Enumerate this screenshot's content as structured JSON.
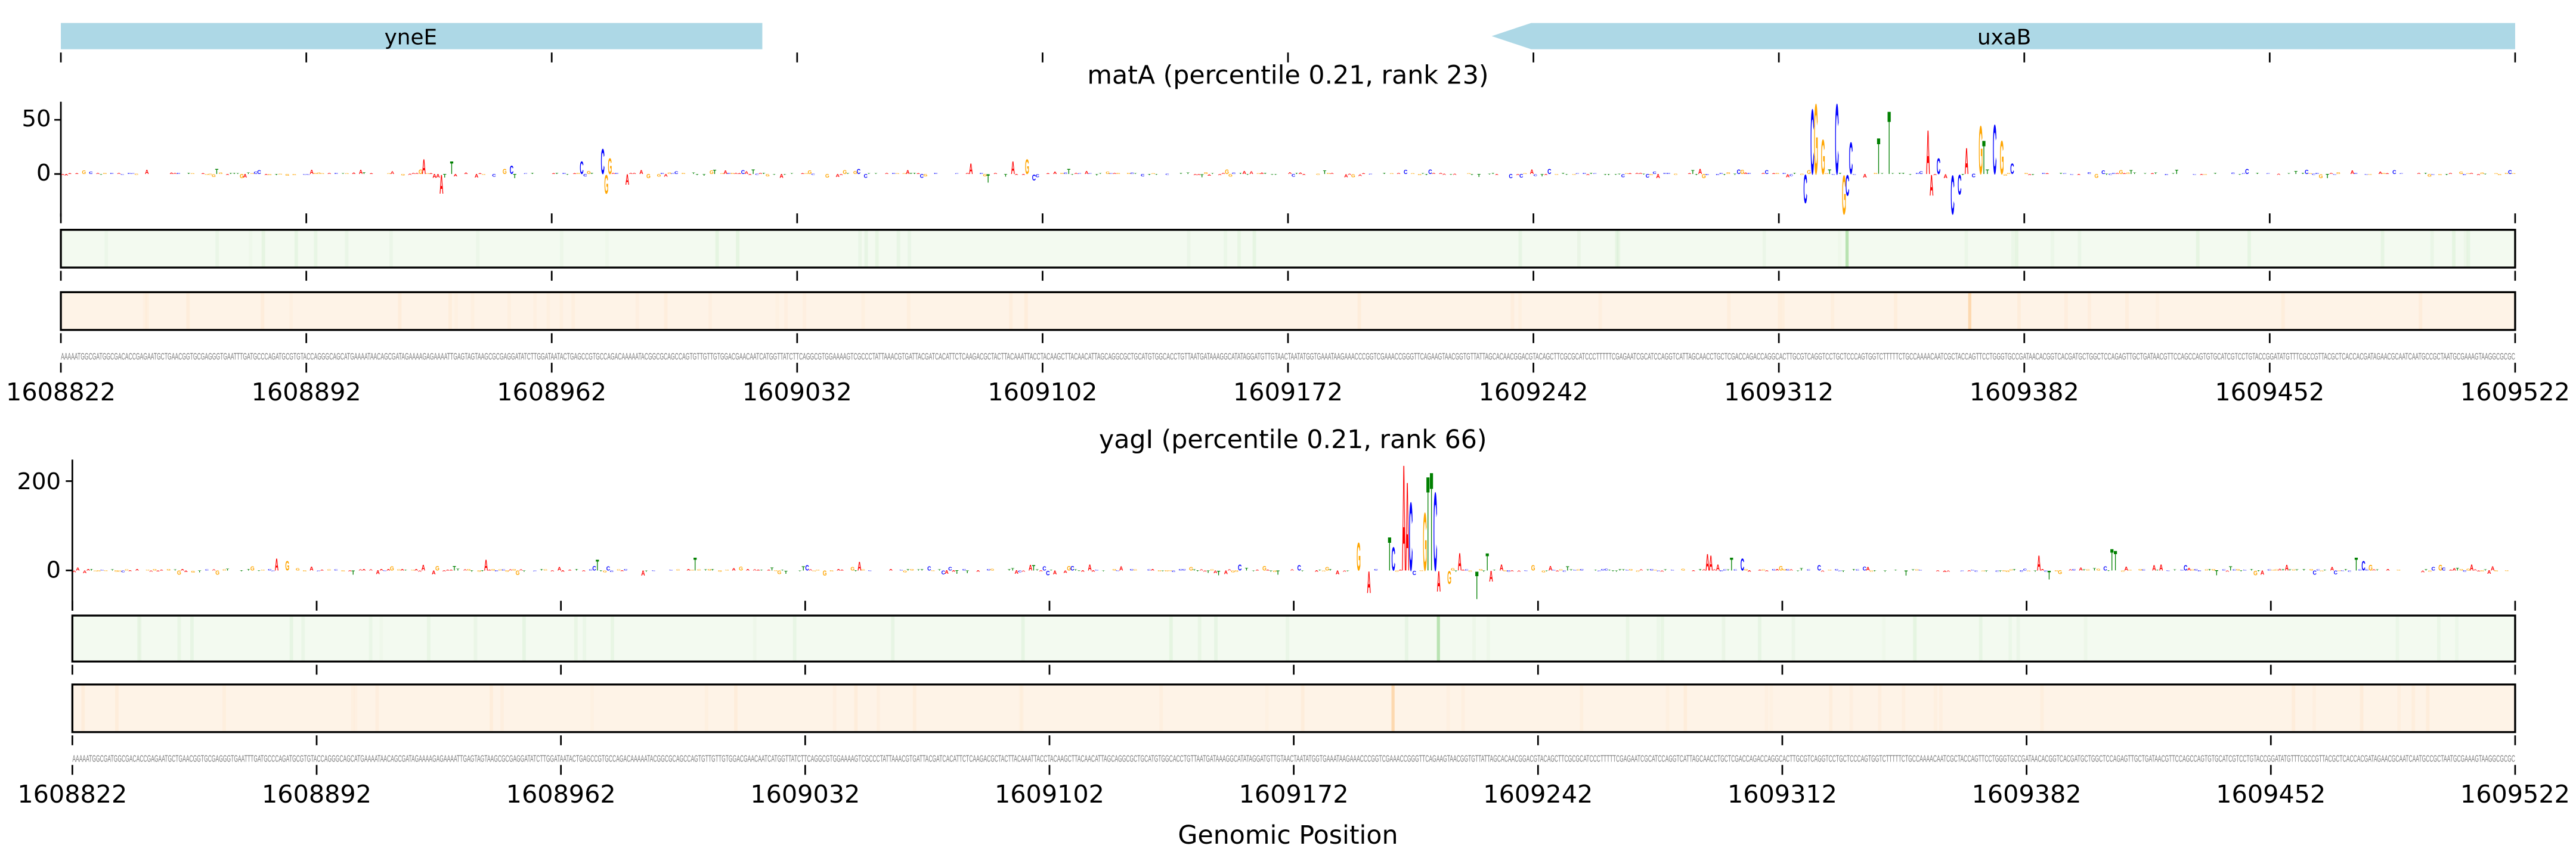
{
  "genes": [
    {
      "name": "yneE",
      "start": 1608822,
      "end": 1609022,
      "strand": "+"
    },
    {
      "name": "uxaB",
      "start": 1609230,
      "end": 1609522,
      "strand": "-"
    }
  ],
  "sequence": "AAAAATGGCGATGGCGACACCGAGAATGCTGAACGGTGCGAGGGTGAATTTGATGCCCAGATGCGTGTACCAGGGCAGCATGAAAATAACAGCGATAGAAAAGAGAAAATTGAGTAGTAAGCGCGAGGATATCTTGGATAATACTGAGCCGTGCCAGACAAAAATACGGCGCAGCCAGTGTTGTTGTGGACGAACAATCATGGTTATCTTCAGGCGTGGAAAAGTCGCCCTATTAAACGTGATTACGATCACATTCTCAAGACGCTACTTACAAATTACCTACAAGCTTACAACATTAGCAGGCGCTGCATGTGGCACCTGTTAATGATAAAGGCATATAGGATGTTGTAACTAATATGGTGAAATAAGAAACCCGGTCGAAACCGGGTTCAGAAGTAACGGTGTTATTAGCACAACGGACGTACAGCTTCGCGCATCCCTTTTTCGAGAATCGCATCCAGGTCATTAGCAACCTGCTCGACCAGACCAGGCACTTGCGTCAGGTCCTGCTCCCAGTGGTCTTTTTCTGCCAAAACAATCGCTACCAGTTCCTGGGTGCCGATAACACGGTCACGATGCTGGCTCCAGAGTTGCTGATAACGTTCCAGCCAGTGTGCATCGTCCTGTACCGGATATGTTTCGCCGTTACGCTCACCACGATAGAACGCAATCAATGCCGCTAATGCGAAAGTAAGGCGCGC",
  "colors": {
    "A": "#ff0000",
    "C": "#0000ff",
    "G": "#ffa500",
    "T": "#008000",
    "gene": "#add8e6",
    "attr_green": "#f3faf0",
    "attr_green_peak": "#b9e3b2",
    "attr_orange": "#fef3e7",
    "attr_orange_peak": "#fdd9b0"
  },
  "xlabel": "Genomic Position",
  "chart_data": [
    {
      "type": "sequence-logo",
      "title": "matA (percentile 0.21, rank 23)",
      "xrange": [
        1608822,
        1609522
      ],
      "xticks": [
        "1608822",
        "1608892",
        "1608962",
        "1609032",
        "1609102",
        "1609172",
        "1609242",
        "1609312",
        "1609382",
        "1609452",
        "1609522"
      ],
      "yticks": [
        "0",
        "50"
      ],
      "ylim": [
        -40,
        70
      ],
      "peaks": [
        [
          1608925,
          "A",
          14
        ],
        [
          1608930,
          "A",
          -18
        ],
        [
          1608933,
          "T",
          12
        ],
        [
          1608950,
          "C",
          8
        ],
        [
          1608970,
          "C",
          12
        ],
        [
          1608976,
          "C",
          24
        ],
        [
          1608977,
          "G",
          -18
        ],
        [
          1608978,
          "G",
          15
        ],
        [
          1608983,
          "A",
          -10
        ],
        [
          1609081,
          "A",
          10
        ],
        [
          1609086,
          "T",
          -8
        ],
        [
          1609093,
          "A",
          12
        ],
        [
          1609097,
          "G",
          14
        ],
        [
          1609099,
          "C",
          -6
        ],
        [
          1609319,
          "C",
          -27
        ],
        [
          1609321,
          "C",
          62
        ],
        [
          1609322,
          "G",
          67
        ],
        [
          1609324,
          "G",
          33
        ],
        [
          1609328,
          "C",
          67
        ],
        [
          1609330,
          "G",
          -37
        ],
        [
          1609331,
          "C",
          -20
        ],
        [
          1609332,
          "C",
          30
        ],
        [
          1609340,
          "T",
          34
        ],
        [
          1609343,
          "T",
          60
        ],
        [
          1609354,
          "A",
          42
        ],
        [
          1609355,
          "A",
          -20
        ],
        [
          1609357,
          "C",
          15
        ],
        [
          1609361,
          "C",
          -37
        ],
        [
          1609363,
          "C",
          -19
        ],
        [
          1609365,
          "A",
          25
        ],
        [
          1609369,
          "G",
          46
        ],
        [
          1609370,
          "T",
          32
        ],
        [
          1609373,
          "C",
          47
        ],
        [
          1609375,
          "G",
          32
        ],
        [
          1609378,
          "C",
          10
        ]
      ],
      "attribution_green_peak": 1609331,
      "attribution_orange_peak": 1609366
    },
    {
      "type": "sequence-logo",
      "title": "yagI (percentile 0.21, rank 66)",
      "xrange": [
        1608822,
        1609522
      ],
      "xticks": [
        "1608822",
        "1608892",
        "1608962",
        "1609032",
        "1609102",
        "1609172",
        "1609242",
        "1609312",
        "1609382",
        "1609452",
        "1609522"
      ],
      "yticks": [
        "0",
        "200"
      ],
      "ylim": [
        -70,
        250
      ],
      "peaks": [
        [
          1608880,
          "A",
          28
        ],
        [
          1608883,
          "G",
          22
        ],
        [
          1608940,
          "A",
          25
        ],
        [
          1608972,
          "T",
          25
        ],
        [
          1609000,
          "T",
          30
        ],
        [
          1609047,
          "A",
          20
        ],
        [
          1609190,
          "G",
          64
        ],
        [
          1609193,
          "A",
          -50
        ],
        [
          1609199,
          "T",
          78
        ],
        [
          1609200,
          "C",
          54
        ],
        [
          1609203,
          "A",
          245
        ],
        [
          1609204,
          "A",
          205
        ],
        [
          1609205,
          "C",
          158
        ],
        [
          1609209,
          "G",
          134
        ],
        [
          1609210,
          "T",
          218
        ],
        [
          1609211,
          "T",
          228
        ],
        [
          1609212,
          "C",
          181
        ],
        [
          1609213,
          "A",
          -47
        ],
        [
          1609216,
          "G",
          -30
        ],
        [
          1609219,
          "A",
          40
        ],
        [
          1609224,
          "T",
          -64
        ],
        [
          1609227,
          "T",
          40
        ],
        [
          1609228,
          "A",
          -25
        ],
        [
          1609290,
          "A",
          38
        ],
        [
          1609291,
          "A",
          35
        ],
        [
          1609297,
          "T",
          30
        ],
        [
          1609300,
          "C",
          28
        ],
        [
          1609385,
          "A",
          35
        ],
        [
          1609388,
          "T",
          -20
        ],
        [
          1609406,
          "T",
          50
        ],
        [
          1609407,
          "T",
          45
        ],
        [
          1609476,
          "T",
          30
        ],
        [
          1609478,
          "C",
          22
        ]
      ],
      "attribution_green_peak": 1609213,
      "attribution_orange_peak": 1609200
    }
  ]
}
